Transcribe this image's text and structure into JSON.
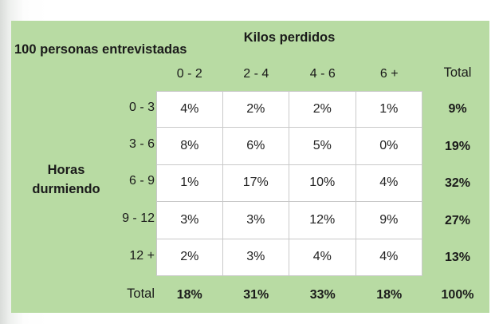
{
  "table": {
    "corner_label": "100 personas entrevistadas",
    "column_group_label": "Kilos perdidos",
    "row_group_label": "Horas durmiendo",
    "columns": [
      "0 - 2",
      "2 - 4",
      "4 - 6",
      "6 +"
    ],
    "total_label": "Total",
    "rows": [
      {
        "label": "0 - 3",
        "values": [
          "4%",
          "2%",
          "2%",
          "1%"
        ],
        "total": "9%"
      },
      {
        "label": "3 - 6",
        "values": [
          "8%",
          "6%",
          "5%",
          "0%"
        ],
        "total": "19%"
      },
      {
        "label": "6 - 9",
        "values": [
          "1%",
          "17%",
          "10%",
          "4%"
        ],
        "total": "32%"
      },
      {
        "label": "9 - 12",
        "values": [
          "3%",
          "3%",
          "12%",
          "9%"
        ],
        "total": "27%"
      },
      {
        "label": "12 +",
        "values": [
          "2%",
          "3%",
          "4%",
          "4%"
        ],
        "total": "13%"
      }
    ],
    "column_totals": [
      "18%",
      "31%",
      "33%",
      "18%"
    ],
    "grand_total": "100%",
    "colors": {
      "header_fill": "#b8dba3",
      "cell_fill": "#ffffff",
      "grid_line": "#c9c9c9"
    }
  }
}
